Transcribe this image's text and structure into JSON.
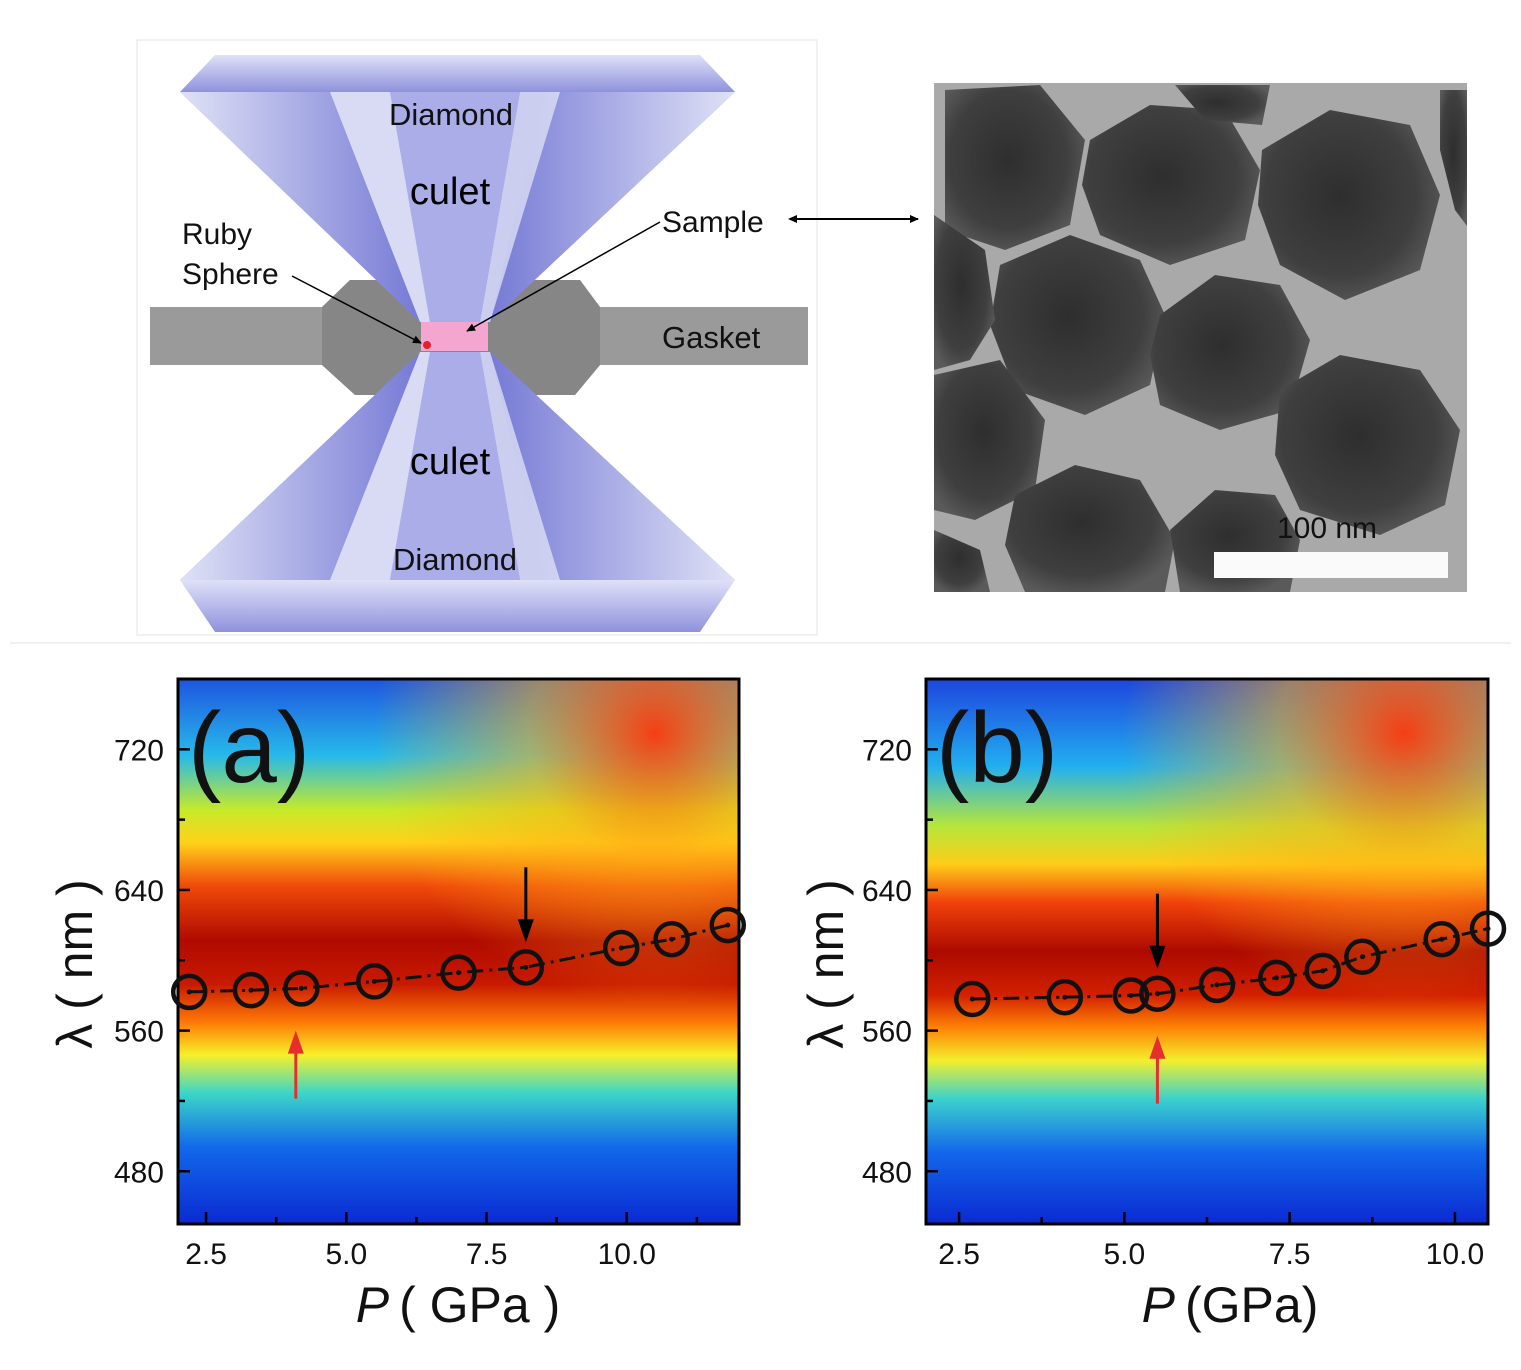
{
  "schematic": {
    "diamond_top_label": "Diamond",
    "culet_top_label": "culet",
    "ruby_label_line1": "Ruby",
    "ruby_label_line2": "Sphere",
    "sample_label": "Sample",
    "gasket_label": "Gasket",
    "culet_bottom_label": "culet",
    "diamond_bottom_label": "Diamond"
  },
  "micrograph": {
    "scale_bar_label": "100 nm"
  },
  "colors": {
    "diamond": "#7c80d6",
    "gasket": "#8f8f8f",
    "sample": "#f4a6d0",
    "ruby": "#e5202a",
    "markers": "#111111",
    "up_arrow": "#e62e2e"
  },
  "chart_data": [
    {
      "type": "heatmap",
      "panel_label": "(a)",
      "xlabel_var": "P",
      "xlabel_unit": "( GPa )",
      "ylabel": "λ ( nm )",
      "xlim": [
        2.0,
        12.0
      ],
      "ylim": [
        450,
        760
      ],
      "xticks": [
        "2.5",
        "5.0",
        "7.5",
        "10.0"
      ],
      "yticks": [
        "480",
        "560",
        "640",
        "720"
      ],
      "series": [
        {
          "name": "peak",
          "x": [
            2.2,
            3.3,
            4.2,
            5.5,
            7.0,
            8.2,
            9.9,
            10.8,
            11.8
          ],
          "y": [
            582,
            583,
            584,
            588,
            593,
            596,
            607,
            612,
            620
          ]
        }
      ],
      "down_arrow_at": 8.2,
      "up_arrow_at": 4.1
    },
    {
      "type": "heatmap",
      "panel_label": "(b)",
      "xlabel_var": "P",
      "xlabel_unit": "(GPa)",
      "ylabel": "λ ( nm )",
      "xlim": [
        2.0,
        10.5
      ],
      "ylim": [
        450,
        760
      ],
      "xticks": [
        "2.5",
        "5.0",
        "7.5",
        "10.0"
      ],
      "yticks": [
        "480",
        "560",
        "640",
        "720"
      ],
      "series": [
        {
          "name": "peak",
          "x": [
            2.7,
            4.1,
            5.1,
            5.5,
            6.4,
            7.3,
            8.0,
            8.6,
            9.8,
            10.5
          ],
          "y": [
            578,
            579,
            580,
            581,
            586,
            590,
            594,
            602,
            612,
            618
          ]
        }
      ],
      "down_arrow_at": 5.5,
      "up_arrow_at": 5.5
    }
  ]
}
